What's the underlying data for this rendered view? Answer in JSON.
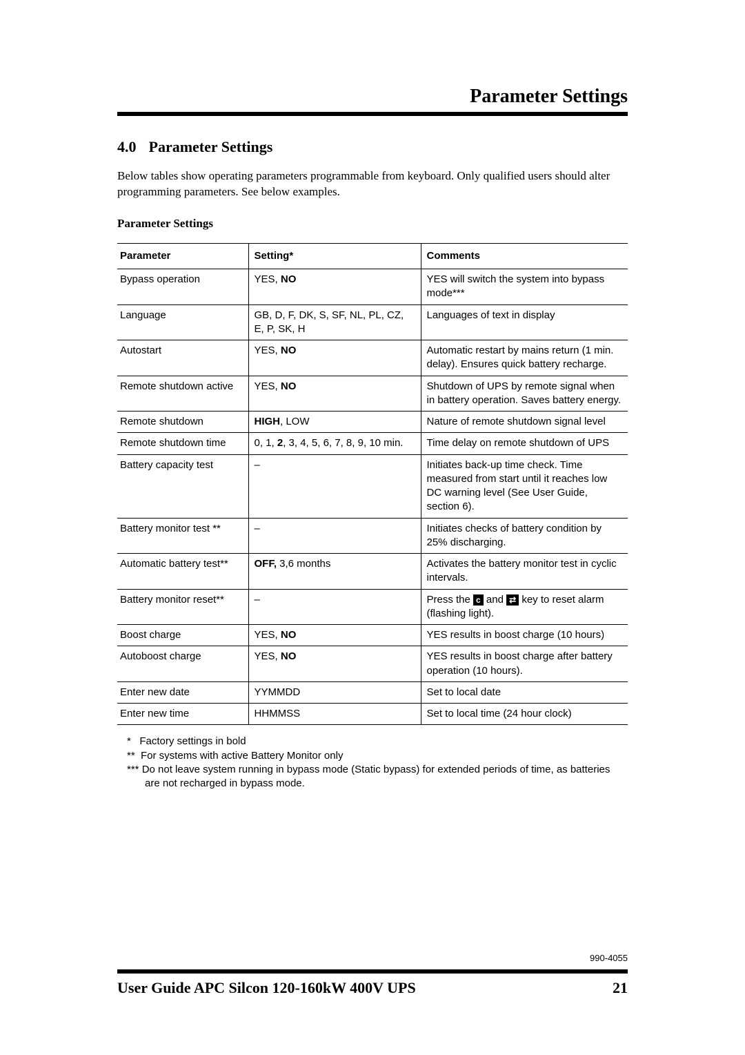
{
  "header": {
    "running_title": "Parameter Settings"
  },
  "section": {
    "number": "4.0",
    "title": "Parameter Settings",
    "intro": "Below tables show operating parameters programmable from keyboard. Only qualified users should alter programming parameters. See below examples."
  },
  "table": {
    "caption": "Parameter Settings",
    "columns": [
      "Parameter",
      "Setting*",
      "Comments"
    ],
    "rows": [
      {
        "param": "Bypass operation",
        "setting_pre": "YES, ",
        "setting_bold": "NO",
        "setting_post": "",
        "comment": "YES will switch the system into bypass mode***"
      },
      {
        "param": "Language",
        "setting_pre": "GB, D, F, DK, S, SF, NL, PL, CZ, E, P, SK, H",
        "setting_bold": "",
        "setting_post": "",
        "comment": "Languages of text in display"
      },
      {
        "param": "Autostart",
        "setting_pre": "YES, ",
        "setting_bold": "NO",
        "setting_post": "",
        "comment": "Automatic restart by mains return (1 min. delay). Ensures quick battery recharge."
      },
      {
        "param": "Remote shutdown active",
        "setting_pre": "YES, ",
        "setting_bold": "NO",
        "setting_post": "",
        "comment": "Shutdown of UPS by remote signal when in battery operation. Saves battery energy."
      },
      {
        "param": "Remote shutdown",
        "setting_pre": "",
        "setting_bold": "HIGH",
        "setting_post": ", LOW",
        "comment": "Nature of remote shutdown signal level"
      },
      {
        "param": "Remote shutdown time",
        "setting_pre": "0, 1, ",
        "setting_bold": "2",
        "setting_post": ", 3, 4, 5, 6, 7, 8, 9, 10 min.",
        "comment": "Time delay on remote shutdown of UPS"
      },
      {
        "param": "Battery capacity test",
        "setting_pre": "–",
        "setting_bold": "",
        "setting_post": "",
        "comment": "Initiates back-up time check. Time measured  from start until it reaches low DC warning level (See User Guide, section 6)."
      },
      {
        "param": "Battery monitor test **",
        "setting_pre": "–",
        "setting_bold": "",
        "setting_post": "",
        "comment": "Initiates checks of battery condition by 25% discharging."
      },
      {
        "param": "Automatic battery test**",
        "setting_pre": "",
        "setting_bold": "OFF,",
        "setting_post": " 3,6 months",
        "comment": "Activates the battery monitor test in cyclic intervals."
      },
      {
        "param": "Battery monitor reset**",
        "setting_pre": "–",
        "setting_bold": "",
        "setting_post": "",
        "comment_special": "reset_keys"
      },
      {
        "param": "Boost charge",
        "setting_pre": "YES, ",
        "setting_bold": "NO",
        "setting_post": "",
        "comment": "YES results in boost charge (10 hours)"
      },
      {
        "param": "Autoboost charge",
        "setting_pre": "YES, ",
        "setting_bold": "NO",
        "setting_post": "",
        "comment": "YES results in boost charge after battery operation (10 hours)."
      },
      {
        "param": "Enter new date",
        "setting_pre": "YYMMDD",
        "setting_bold": "",
        "setting_post": "",
        "comment": "Set to local date"
      },
      {
        "param": "Enter new time",
        "setting_pre": "HHMMSS",
        "setting_bold": "",
        "setting_post": "",
        "comment": "Set to local time (24 hour clock)"
      }
    ],
    "reset_row": {
      "pre": "Press the ",
      "key1": "c",
      "mid": " and ",
      "key2": "⇄",
      "post": " key to reset alarm",
      "line2": "(flashing light)."
    }
  },
  "footnotes": {
    "n1": "Factory settings in bold",
    "n2": "For systems with active Battery Monitor only",
    "n3": "Do not leave system running in bypass mode (Static bypass) for extended periods of time, as batteries are not recharged in bypass mode."
  },
  "doc_code": "990-4055",
  "footer": {
    "title": "User Guide APC Silcon 120-160kW 400V UPS",
    "page": "21"
  }
}
